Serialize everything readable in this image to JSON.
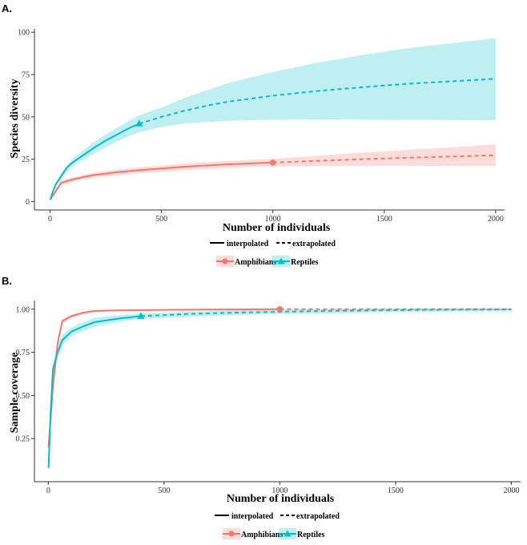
{
  "chart_data": [
    {
      "panel_label": "A.",
      "type": "line",
      "xlabel": "Number of individuals",
      "ylabel": "Species diversity",
      "xlim": [
        -70,
        2040
      ],
      "ylim": [
        -5,
        102
      ],
      "xticks": [
        0,
        500,
        1000,
        1500,
        2000
      ],
      "yticks": [
        0,
        25,
        50,
        75,
        100
      ],
      "grid": false,
      "series": [
        {
          "name": "Amphibians",
          "color": "#F8766D",
          "marker": "circle",
          "observed": {
            "x": 1000,
            "y": 23
          },
          "interpolated": [
            [
              1,
              1
            ],
            [
              10,
              3
            ],
            [
              25,
              6
            ],
            [
              50,
              11
            ],
            [
              100,
              13
            ],
            [
              150,
              14.5
            ],
            [
              200,
              15.7
            ],
            [
              300,
              17.3
            ],
            [
              400,
              18.5
            ],
            [
              500,
              19.5
            ],
            [
              600,
              20.5
            ],
            [
              700,
              21.3
            ],
            [
              800,
              22
            ],
            [
              900,
              22.5
            ],
            [
              1000,
              23
            ]
          ],
          "extrapolated": [
            [
              1000,
              23
            ],
            [
              1200,
              24
            ],
            [
              1400,
              25
            ],
            [
              1600,
              25.8
            ],
            [
              1800,
              26.6
            ],
            [
              2000,
              27.3
            ]
          ],
          "ci_lower": [
            [
              1,
              1
            ],
            [
              25,
              5
            ],
            [
              50,
              9.5
            ],
            [
              100,
              11.8
            ],
            [
              200,
              14.2
            ],
            [
              400,
              16.8
            ],
            [
              600,
              18.6
            ],
            [
              800,
              20
            ],
            [
              1000,
              20.8
            ],
            [
              1200,
              21
            ],
            [
              1400,
              21.1
            ],
            [
              1600,
              21.1
            ],
            [
              1800,
              21
            ],
            [
              2000,
              21
            ]
          ],
          "ci_upper": [
            [
              1,
              1
            ],
            [
              25,
              7
            ],
            [
              50,
              12.5
            ],
            [
              100,
              14.3
            ],
            [
              200,
              17.2
            ],
            [
              400,
              20.3
            ],
            [
              600,
              22.4
            ],
            [
              800,
              24
            ],
            [
              1000,
              25.2
            ],
            [
              1200,
              27
            ],
            [
              1400,
              28.9
            ],
            [
              1600,
              30.5
            ],
            [
              1800,
              32
            ],
            [
              2000,
              33.7
            ]
          ]
        },
        {
          "name": "Reptiles",
          "color": "#00BFC4",
          "marker": "triangle",
          "observed": {
            "x": 400,
            "y": 46
          },
          "interpolated": [
            [
              1,
              1
            ],
            [
              10,
              5
            ],
            [
              25,
              10
            ],
            [
              50,
              15
            ],
            [
              75,
              20
            ],
            [
              100,
              23
            ],
            [
              150,
              27.5
            ],
            [
              200,
              32
            ],
            [
              250,
              36
            ],
            [
              300,
              39.5
            ],
            [
              350,
              43
            ],
            [
              400,
              46
            ]
          ],
          "extrapolated": [
            [
              400,
              46
            ],
            [
              500,
              50
            ],
            [
              600,
              53.5
            ],
            [
              700,
              56.5
            ],
            [
              800,
              59
            ],
            [
              1000,
              62.5
            ],
            [
              1200,
              65.3
            ],
            [
              1400,
              67.5
            ],
            [
              1600,
              69.5
            ],
            [
              1800,
              71
            ],
            [
              2000,
              72.5
            ]
          ],
          "ci_lower": [
            [
              1,
              1
            ],
            [
              25,
              9
            ],
            [
              50,
              13.5
            ],
            [
              100,
              21
            ],
            [
              200,
              28.5
            ],
            [
              300,
              35.5
            ],
            [
              400,
              41
            ],
            [
              500,
              44
            ],
            [
              600,
              46
            ],
            [
              700,
              47
            ],
            [
              800,
              47.7
            ],
            [
              1000,
              48.3
            ],
            [
              1200,
              48.5
            ],
            [
              1400,
              48.4
            ],
            [
              1600,
              48.2
            ],
            [
              1800,
              48.1
            ],
            [
              2000,
              48
            ]
          ],
          "ci_upper": [
            [
              1,
              1
            ],
            [
              25,
              11
            ],
            [
              50,
              16.5
            ],
            [
              100,
              25
            ],
            [
              200,
              35.5
            ],
            [
              300,
              43.5
            ],
            [
              400,
              51
            ],
            [
              500,
              55.5
            ],
            [
              600,
              61
            ],
            [
              700,
              65.5
            ],
            [
              800,
              70
            ],
            [
              1000,
              76.5
            ],
            [
              1200,
              82
            ],
            [
              1400,
              86.5
            ],
            [
              1600,
              90.5
            ],
            [
              1800,
              93.5
            ],
            [
              2000,
              96.5
            ]
          ]
        }
      ],
      "linetype_legend": {
        "interpolated": "interpolated",
        "extrapolated": "extrapolated"
      },
      "legend_placement": "bottom"
    },
    {
      "panel_label": "B.",
      "type": "line",
      "xlabel": "Number of individuals",
      "ylabel": "Sample coverage",
      "xlim": [
        -60,
        2040
      ],
      "ylim": [
        0.0,
        1.05
      ],
      "xticks": [
        0,
        500,
        1000,
        1500,
        2000
      ],
      "yticks": [
        0.25,
        0.5,
        0.75,
        1.0
      ],
      "ytick_labels": [
        "0.25",
        "0.50",
        "0.75",
        "1.00"
      ],
      "grid": false,
      "series": [
        {
          "name": "Amphibians",
          "color": "#F8766D",
          "marker": "circle",
          "observed": {
            "x": 1000,
            "y": 1.0
          },
          "interpolated": [
            [
              1,
              0.2
            ],
            [
              20,
              0.55
            ],
            [
              40,
              0.8
            ],
            [
              60,
              0.93
            ],
            [
              100,
              0.96
            ],
            [
              150,
              0.98
            ],
            [
              200,
              0.99
            ],
            [
              300,
              0.993
            ],
            [
              500,
              0.996
            ],
            [
              700,
              0.998
            ],
            [
              1000,
              1.0
            ]
          ],
          "extrapolated": [
            [
              1000,
              1.0
            ],
            [
              1500,
              1.0
            ],
            [
              2000,
              1.0
            ]
          ],
          "ci_lower": [
            [
              1,
              0.19
            ],
            [
              20,
              0.53
            ],
            [
              40,
              0.78
            ],
            [
              60,
              0.915
            ],
            [
              100,
              0.95
            ],
            [
              200,
              0.985
            ],
            [
              500,
              0.993
            ],
            [
              1000,
              0.997
            ],
            [
              2000,
              0.998
            ]
          ],
          "ci_upper": [
            [
              1,
              0.21
            ],
            [
              20,
              0.57
            ],
            [
              40,
              0.82
            ],
            [
              60,
              0.945
            ],
            [
              100,
              0.97
            ],
            [
              200,
              0.995
            ],
            [
              500,
              0.999
            ],
            [
              1000,
              1.0
            ],
            [
              2000,
              1.0
            ]
          ]
        },
        {
          "name": "Reptiles",
          "color": "#00BFC4",
          "marker": "triangle",
          "observed": {
            "x": 400,
            "y": 0.96
          },
          "interpolated": [
            [
              1,
              0.08
            ],
            [
              10,
              0.4
            ],
            [
              20,
              0.65
            ],
            [
              40,
              0.75
            ],
            [
              60,
              0.82
            ],
            [
              100,
              0.87
            ],
            [
              150,
              0.9
            ],
            [
              200,
              0.925
            ],
            [
              300,
              0.945
            ],
            [
              400,
              0.96
            ]
          ],
          "extrapolated": [
            [
              400,
              0.96
            ],
            [
              600,
              0.972
            ],
            [
              800,
              0.98
            ],
            [
              1000,
              0.985
            ],
            [
              1200,
              0.99
            ],
            [
              1400,
              0.993
            ],
            [
              1600,
              0.996
            ],
            [
              1800,
              0.998
            ],
            [
              2000,
              0.999
            ]
          ],
          "ci_lower": [
            [
              1,
              0.07
            ],
            [
              10,
              0.38
            ],
            [
              20,
              0.62
            ],
            [
              40,
              0.72
            ],
            [
              60,
              0.79
            ],
            [
              100,
              0.845
            ],
            [
              200,
              0.9
            ],
            [
              300,
              0.925
            ],
            [
              400,
              0.945
            ],
            [
              600,
              0.955
            ],
            [
              800,
              0.965
            ],
            [
              1000,
              0.972
            ],
            [
              1400,
              0.982
            ],
            [
              2000,
              0.99
            ]
          ],
          "ci_upper": [
            [
              1,
              0.09
            ],
            [
              10,
              0.42
            ],
            [
              20,
              0.68
            ],
            [
              40,
              0.78
            ],
            [
              60,
              0.85
            ],
            [
              100,
              0.895
            ],
            [
              200,
              0.95
            ],
            [
              300,
              0.965
            ],
            [
              400,
              0.975
            ],
            [
              600,
              0.985
            ],
            [
              800,
              0.993
            ],
            [
              1000,
              0.997
            ],
            [
              1400,
              1.0
            ],
            [
              2000,
              1.0
            ]
          ]
        }
      ],
      "linetype_legend": {
        "interpolated": "interpolated",
        "extrapolated": "extrapolated"
      },
      "legend_placement": "bottom"
    }
  ]
}
